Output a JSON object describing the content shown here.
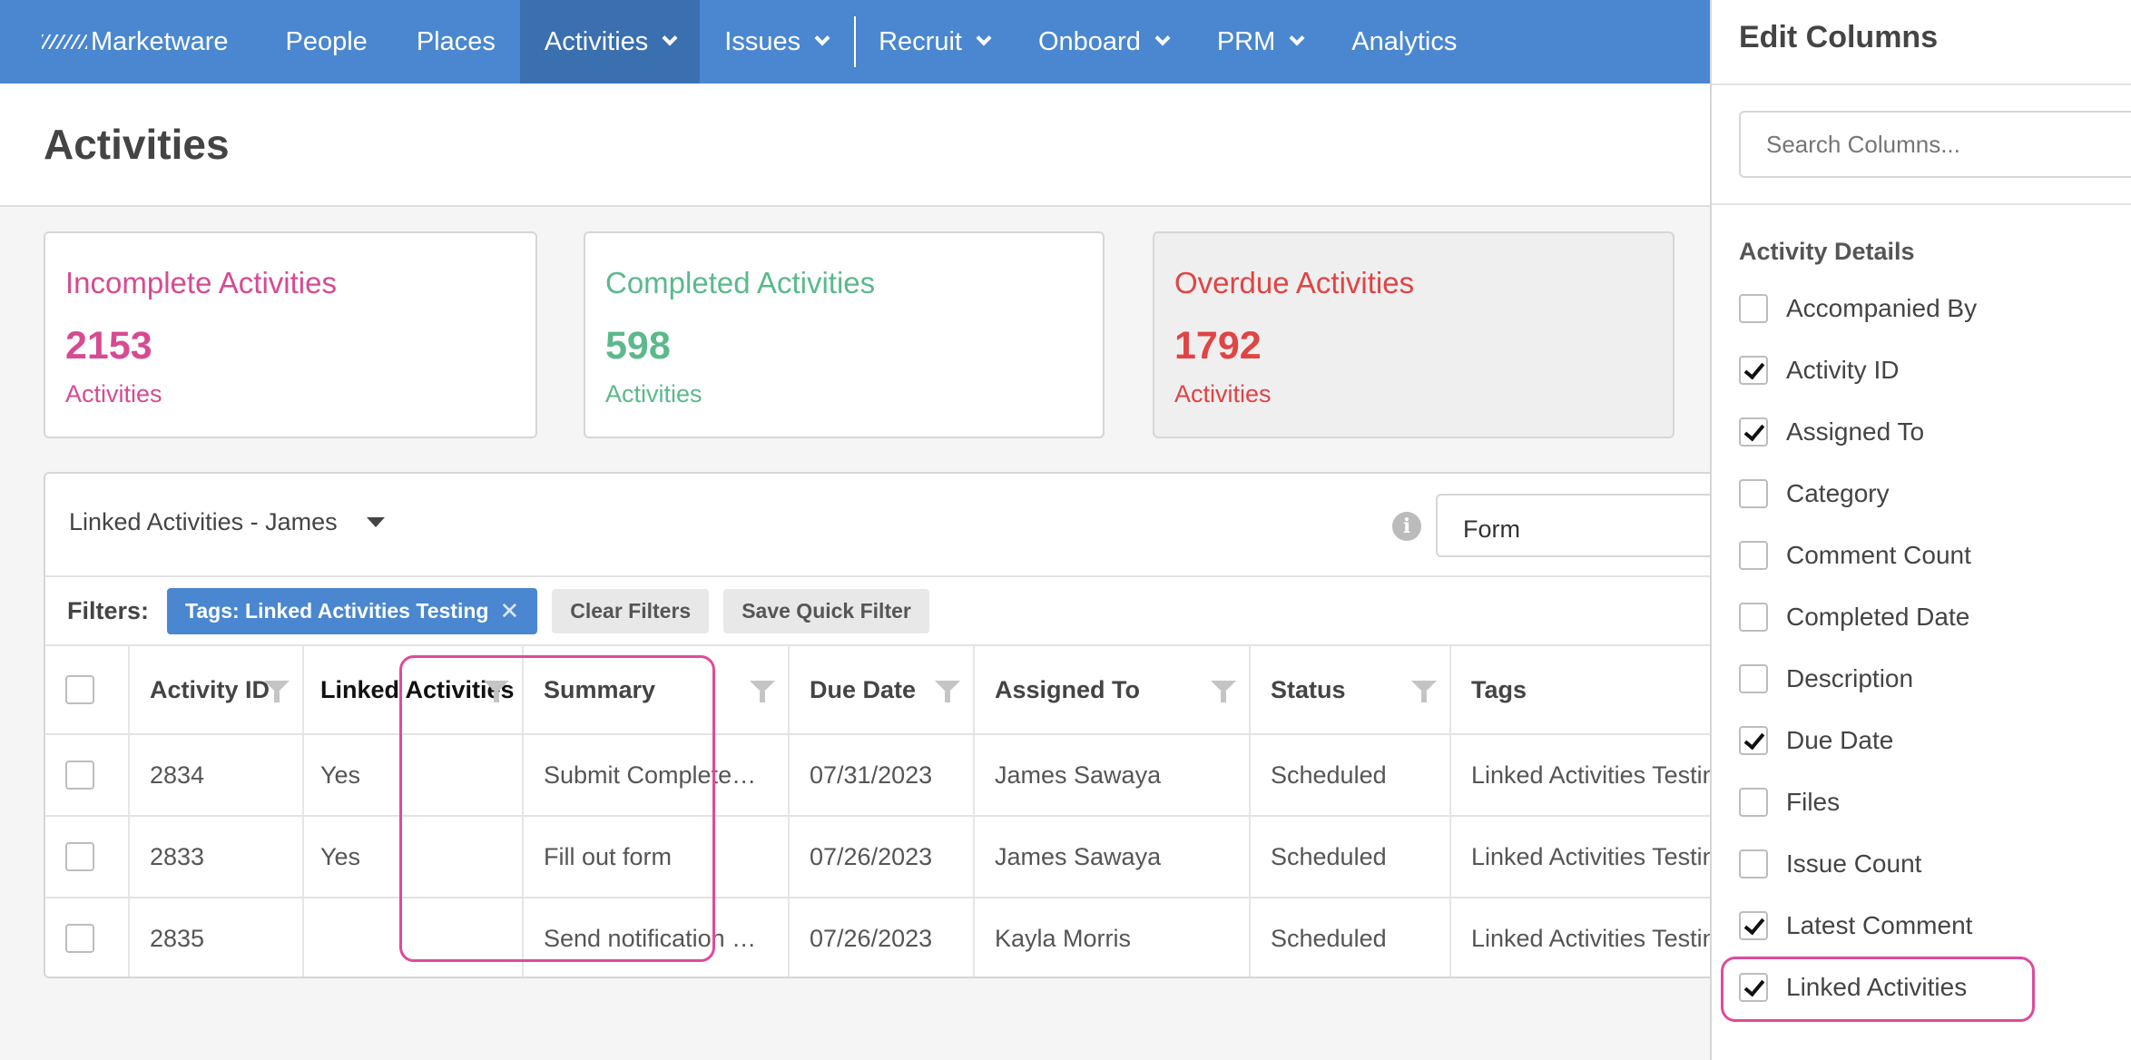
{
  "nav": {
    "brand": "Marketware",
    "items": [
      {
        "label": "People",
        "dropdown": false
      },
      {
        "label": "Places",
        "dropdown": false
      },
      {
        "label": "Activities",
        "dropdown": true
      },
      {
        "label": "Issues",
        "dropdown": true
      },
      {
        "label": "Recruit",
        "dropdown": true
      },
      {
        "label": "Onboard",
        "dropdown": true
      },
      {
        "label": "PRM",
        "dropdown": true
      },
      {
        "label": "Analytics",
        "dropdown": false
      }
    ]
  },
  "page": {
    "title": "Activities"
  },
  "cards": [
    {
      "title": "Incomplete Activities",
      "count": "2153",
      "unit": "Activities",
      "color": "#d64b92"
    },
    {
      "title": "Completed Activities",
      "count": "598",
      "unit": "Activities",
      "color": "#5bb98b"
    },
    {
      "title": "Overdue Activities",
      "count": "1792",
      "unit": "Activities",
      "color": "#e04444"
    }
  ],
  "grid": {
    "view_name": "Linked Activities - James",
    "form_input_value": "Form",
    "filters_label": "Filters:",
    "active_filter": "Tags: Linked Activities Testing",
    "clear_filters": "Clear Filters",
    "save_quick_filter": "Save Quick Filter",
    "columns": [
      "Activity ID",
      "Linked Activities",
      "Summary",
      "Due Date",
      "Assigned To",
      "Status",
      "Tags"
    ],
    "rows": [
      {
        "activity_id": "2834",
        "linked": "Yes",
        "summary": "Submit Complete…",
        "due": "07/31/2023",
        "assigned": "James Sawaya",
        "status": "Scheduled",
        "tags": "Linked Activities Testing"
      },
      {
        "activity_id": "2833",
        "linked": "Yes",
        "summary": "Fill out form",
        "due": "07/26/2023",
        "assigned": "James Sawaya",
        "status": "Scheduled",
        "tags": "Linked Activities Testing"
      },
      {
        "activity_id": "2835",
        "linked": "",
        "summary": "Send notification …",
        "due": "07/26/2023",
        "assigned": "Kayla Morris",
        "status": "Scheduled",
        "tags": "Linked Activities Testing"
      }
    ]
  },
  "drawer": {
    "title": "Edit Columns",
    "search_placeholder": "Search Columns...",
    "section": "Activity Details",
    "columns": [
      {
        "label": "Accompanied By",
        "checked": false
      },
      {
        "label": "Activity ID",
        "checked": true
      },
      {
        "label": "Assigned To",
        "checked": true
      },
      {
        "label": "Category",
        "checked": false
      },
      {
        "label": "Comment Count",
        "checked": false
      },
      {
        "label": "Completed Date",
        "checked": false
      },
      {
        "label": "Description",
        "checked": false
      },
      {
        "label": "Due Date",
        "checked": true
      },
      {
        "label": "Files",
        "checked": false
      },
      {
        "label": "Issue Count",
        "checked": false
      },
      {
        "label": "Latest Comment",
        "checked": true
      },
      {
        "label": "Linked Activities",
        "checked": true
      }
    ]
  },
  "colors": {
    "nav_bg": "#4a87d0",
    "nav_active": "#3a6fb0",
    "highlight": "#e04a9a"
  }
}
